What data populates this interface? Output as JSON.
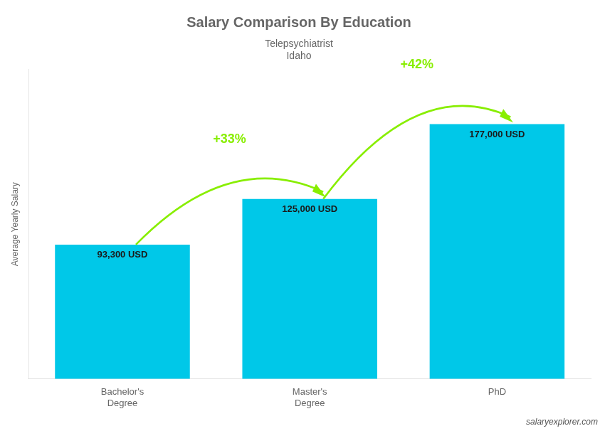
{
  "chart_data": {
    "type": "bar",
    "title": "Salary Comparison By Education",
    "subtitle": [
      "Telepsychiatrist",
      "Idaho"
    ],
    "ylabel": "Average Yearly Salary",
    "categories": [
      "Bachelor's\nDegree",
      "Master's\nDegree",
      "PhD"
    ],
    "values": [
      93300,
      125000,
      177000
    ],
    "value_labels": [
      "93,300 USD",
      "125,000 USD",
      "177,000 USD"
    ],
    "data_labels": true,
    "color": "#00c8e8",
    "ylim": [
      0,
      215000
    ],
    "grid": false,
    "legend": false,
    "tick_labels": "x",
    "annotations": [
      {
        "text": "+33%",
        "from": 0,
        "to": 1,
        "color": "#88ee00"
      },
      {
        "text": "+42%",
        "from": 1,
        "to": 2,
        "color": "#88ee00"
      },
      {
        "text": "salaryexplorer.com"
      }
    ]
  }
}
